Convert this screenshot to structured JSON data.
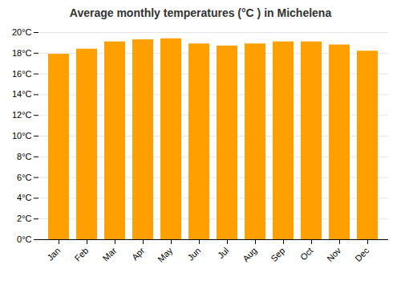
{
  "chart_data": {
    "type": "bar",
    "title": "Average monthly temperatures (°C ) in Michelena",
    "categories": [
      "Jan",
      "Feb",
      "Mar",
      "Apr",
      "May",
      "Jun",
      "Jul",
      "Aug",
      "Sep",
      "Oct",
      "Nov",
      "Dec"
    ],
    "values": [
      17.9,
      18.4,
      19.1,
      19.3,
      19.4,
      18.9,
      18.7,
      18.9,
      19.1,
      19.1,
      18.8,
      18.2
    ],
    "color": "#FFA000",
    "ylim": [
      0,
      20
    ],
    "yticks": [
      {
        "value": 0,
        "label": "0°C"
      },
      {
        "value": 2,
        "label": "2°C"
      },
      {
        "value": 4,
        "label": "4°C"
      },
      {
        "value": 6,
        "label": "6°C"
      },
      {
        "value": 8,
        "label": "8°C"
      },
      {
        "value": 10,
        "label": "10°C"
      },
      {
        "value": 12,
        "label": "12°C"
      },
      {
        "value": 14,
        "label": "14°C"
      },
      {
        "value": 16,
        "label": "16°C"
      },
      {
        "value": 18,
        "label": "18°C"
      },
      {
        "value": 20,
        "label": "20°C"
      }
    ],
    "grid": true
  }
}
